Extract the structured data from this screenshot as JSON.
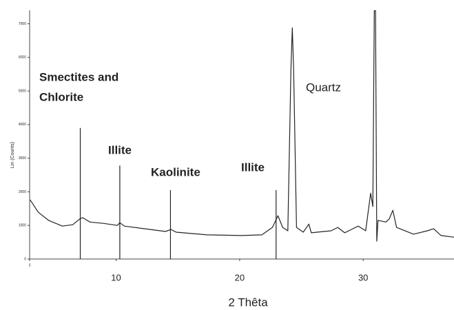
{
  "chart_data": {
    "type": "line",
    "x_label": "2 Thêta",
    "y_label": "Lin (Counts)",
    "xlim": [
      3,
      37.35
    ],
    "ylim": [
      0,
      7400
    ],
    "xticks": [
      3,
      10,
      20,
      30
    ],
    "yticks": [
      0,
      1000,
      2000,
      3000,
      4000,
      5000,
      6000,
      7000
    ],
    "series": [
      {
        "color": "#222222",
        "x": [
          3.04,
          3.7,
          4.54,
          5.65,
          6.49,
          7.05,
          7.3,
          7.88,
          9.0,
          10.1,
          10.3,
          10.67,
          12.34,
          14.0,
          14.45,
          14.85,
          17.35,
          20.14,
          21.8,
          22.65,
          23.1,
          23.48,
          23.9,
          24.15,
          24.26,
          24.37,
          24.6,
          25.15,
          25.6,
          25.8,
          27.4,
          27.94,
          28.5,
          29.6,
          30.2,
          30.6,
          30.78,
          30.9,
          31.0,
          31.1,
          31.2,
          31.84,
          32.1,
          32.4,
          32.7,
          34.07,
          35.2,
          35.7,
          36.3,
          37.35
        ],
        "values": [
          1760,
          1390,
          1150,
          980,
          1020,
          1190,
          1230,
          1100,
          1060,
          1000,
          1080,
          980,
          900,
          820,
          880,
          800,
          720,
          700,
          720,
          940,
          1290,
          940,
          840,
          5650,
          6880,
          5650,
          940,
          800,
          1040,
          780,
          840,
          940,
          780,
          980,
          840,
          1960,
          1560,
          7390,
          7390,
          530,
          1150,
          1100,
          1190,
          1450,
          940,
          740,
          840,
          900,
          700,
          650
        ]
      }
    ],
    "reference_lines": {
      "color": "#222222",
      "x": [
        7.1,
        10.3,
        14.4,
        22.95
      ],
      "values": [
        3900,
        2780,
        2050,
        2050
      ]
    },
    "annotations": [
      "Smectites and",
      "Chlorite",
      "Illite",
      "Kaolinite",
      "Illite",
      "Quartz"
    ]
  }
}
